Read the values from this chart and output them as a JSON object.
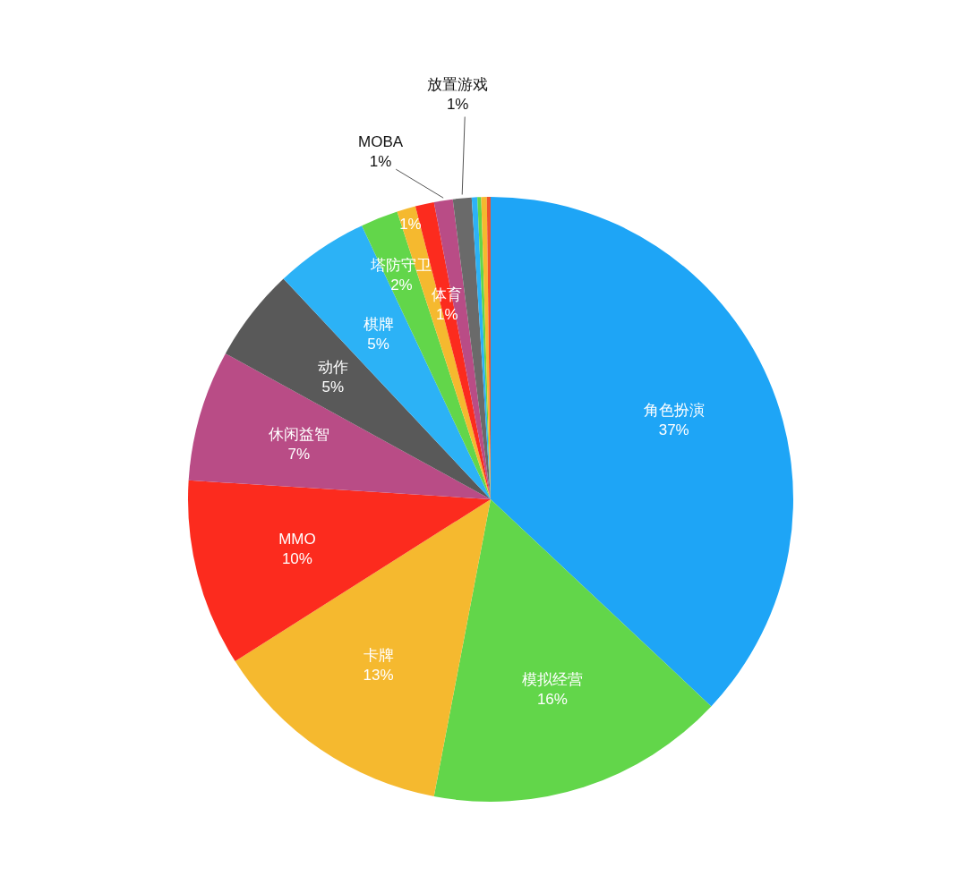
{
  "chart_data": {
    "type": "pie",
    "categories": [
      "角色扮演",
      "模拟经营",
      "卡牌",
      "MMO",
      "休闲益智",
      "动作",
      "棋牌",
      "塔防守卫",
      null,
      "体育",
      "MOBA",
      "放置游戏",
      null,
      null,
      null,
      null
    ],
    "values": [
      37,
      16,
      13,
      10,
      7,
      5,
      5,
      2,
      1,
      1,
      1,
      1,
      0.3,
      0.2,
      0.3,
      0.2
    ],
    "colors": [
      "#1ea5f6",
      "#62d64a",
      "#f5b92f",
      "#fc2b1e",
      "#b94c86",
      "#595959",
      "#2cb2f6",
      "#62d64a",
      "#f5b92f",
      "#fc2b1e",
      "#b94c86",
      "#6a6a6a",
      "#2cb2f6",
      "#62d64a",
      "#f5b92f",
      "#f0532e"
    ],
    "value_labels": [
      "37%",
      "16%",
      "13%",
      "10%",
      "7%",
      "5%",
      "5%",
      "2%",
      "1%",
      "1%",
      "1%",
      "1%",
      null,
      null,
      null,
      null
    ]
  }
}
